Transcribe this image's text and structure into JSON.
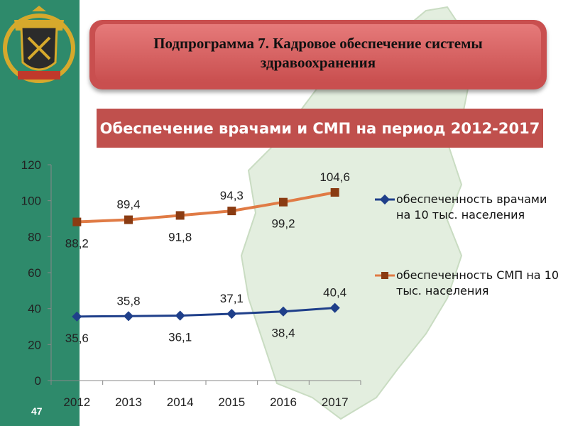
{
  "title": "Подпрограмма 7. Кадровое обеспечение системы здравоохранения",
  "subtitle": "Обеспечение врачами и СМП на период 2012-2017",
  "page_number": "47",
  "colors": {
    "stripe": "#2e8a6b",
    "title_bg": "#c94f4f",
    "subtitle_bg": "#c0504d",
    "doctors": "#1f3f8a",
    "nurses": "#e07b45",
    "map": "#e3eedf"
  },
  "icons": [
    "coat-of-arms-icon",
    "region-map-icon"
  ],
  "chart_data": {
    "type": "line",
    "categories": [
      "2012",
      "2013",
      "2014",
      "2015",
      "2016",
      "2017"
    ],
    "ylim": [
      0,
      120
    ],
    "yticks": [
      "0",
      "20",
      "40",
      "60",
      "80",
      "100",
      "120"
    ],
    "grid": false,
    "legend_position": "right",
    "series": [
      {
        "name": "обеспеченность врачами на 10 тыс. населения",
        "values": [
          35.6,
          35.8,
          36.1,
          37.1,
          38.4,
          40.4
        ],
        "labels": [
          "35,6",
          "35,8",
          "36,1",
          "37,1",
          "38,4",
          "40,4"
        ],
        "marker": "diamond"
      },
      {
        "name": "обеспеченность СМП на 10 тыс. населения",
        "values": [
          88.2,
          89.4,
          91.8,
          94.3,
          99.2,
          104.6
        ],
        "labels": [
          "88,2",
          "89,4",
          "91,8",
          "94,3",
          "99,2",
          "104,6"
        ],
        "marker": "square"
      }
    ]
  }
}
